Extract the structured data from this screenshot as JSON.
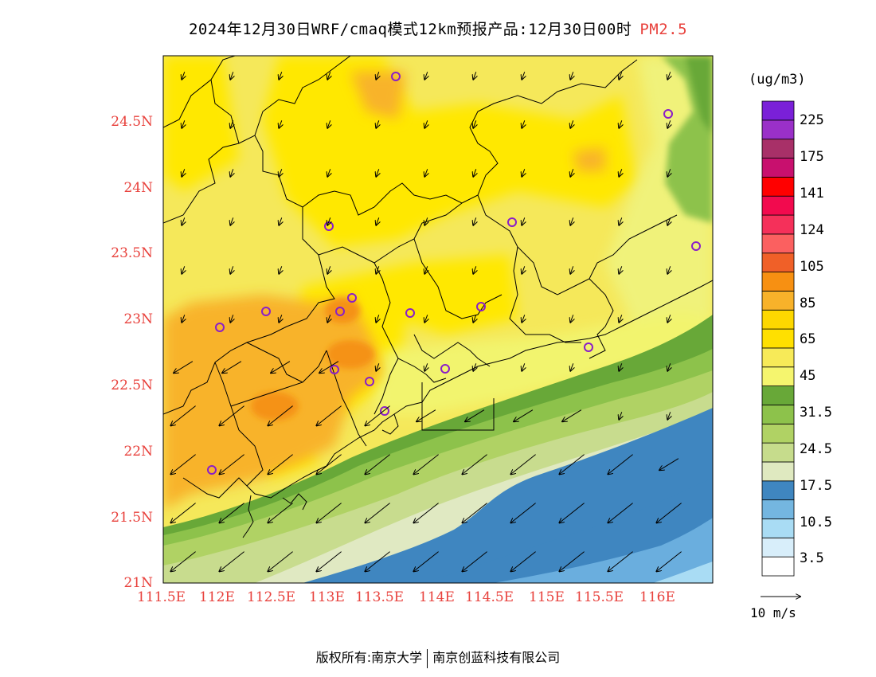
{
  "title": {
    "main": "2024年12月30日WRF/cmaq模式12km预报产品:12月30日00时",
    "pollutant": "PM2.5"
  },
  "map": {
    "lat_ticks": [
      "24.5N",
      "24N",
      "23.5N",
      "23N",
      "22.5N",
      "22N",
      "21.5N",
      "21N"
    ],
    "lon_ticks": [
      "111.5E",
      "112E",
      "112.5E",
      "113E",
      "113.5E",
      "114E",
      "114.5E",
      "115E",
      "115.5E",
      "116E"
    ],
    "label_color": "#e8413c"
  },
  "colorbar": {
    "unit": "(ug/m3)",
    "labels": [
      "225",
      "175",
      "141",
      "124",
      "105",
      "85",
      "65",
      "45",
      "31.5",
      "24.5",
      "17.5",
      "10.5",
      "3.5"
    ],
    "colors": [
      "#ffffff",
      "#d8eefa",
      "#a9dcf4",
      "#74b6e0",
      "#3f86c0",
      "#dfe9c0",
      "#c6dc8c",
      "#b0d264",
      "#8dc24b",
      "#68a838",
      "#f5f56e",
      "#f7ea58",
      "#ffe000",
      "#fdd800",
      "#f8b22a",
      "#f79012",
      "#f06028",
      "#fb6060",
      "#f5305a",
      "#f20a4e",
      "#ff0000",
      "#c8106e",
      "#a83068",
      "#9a30c8",
      "#7a20d8"
    ]
  },
  "wind_legend": {
    "label": "10 m/s"
  },
  "footer": {
    "left": "版权所有:南京大学",
    "right": "南京创蓝科技有限公司"
  }
}
